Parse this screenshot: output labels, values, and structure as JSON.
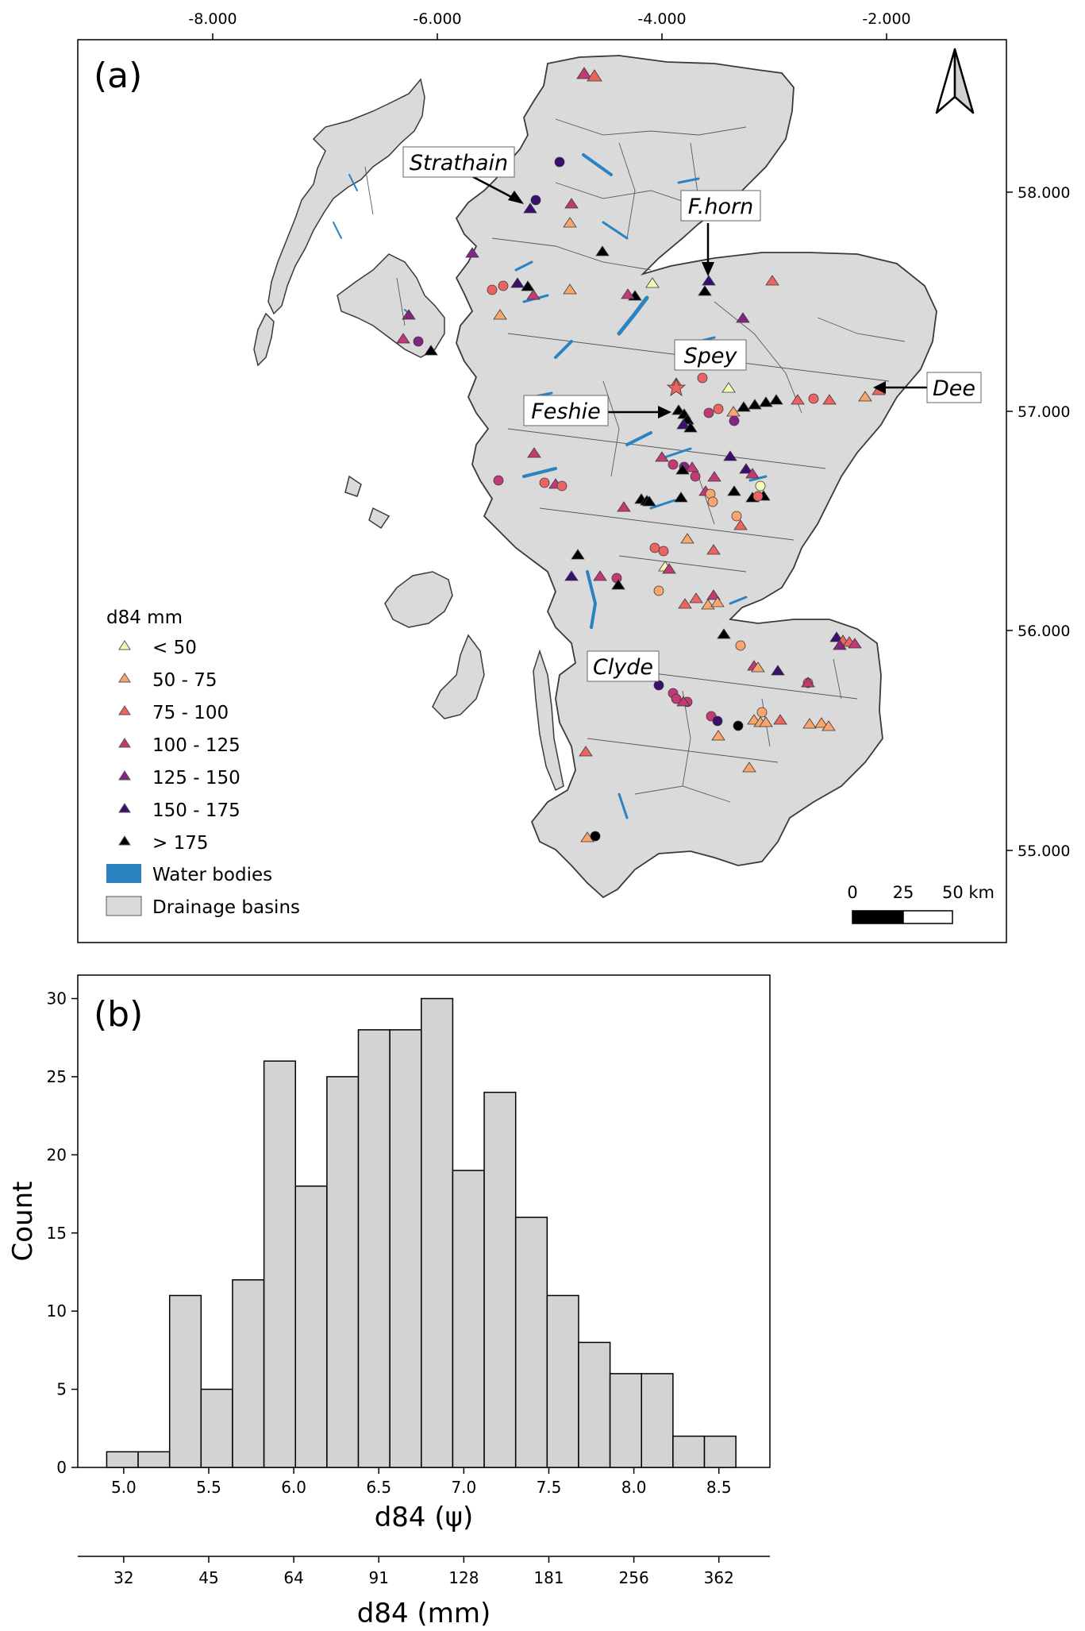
{
  "panel_a": {
    "label": "(a)",
    "lon_ticks": [
      "-8.000",
      "-6.000",
      "-4.000",
      "-2.000"
    ],
    "lat_ticks": [
      "58.000",
      "57.000",
      "56.000",
      "55.000"
    ],
    "callouts": [
      "Strathain",
      "F.horn",
      "Spey",
      "Feshie",
      "Dee",
      "Clyde"
    ],
    "legend": {
      "title": "d84 mm",
      "items": [
        {
          "label": "< 50",
          "color": "#f5fbb4"
        },
        {
          "label": "50 - 75",
          "color": "#f8a56e"
        },
        {
          "label": "75 - 100",
          "color": "#ec6461"
        },
        {
          "label": "100 - 125",
          "color": "#c13a74"
        },
        {
          "label": "125 - 150",
          "color": "#832681"
        },
        {
          "label": "150 - 175",
          "color": "#3b0f6f"
        },
        {
          "label": "> 175",
          "color": "#000004"
        }
      ],
      "water_label": "Water bodies",
      "water_color": "#2b84c1",
      "basin_label": "Drainage basins",
      "basin_color": "#dadada"
    },
    "scalebar": {
      "labels": [
        "0",
        "25",
        "50 km"
      ]
    },
    "north_arrow": "north-arrow"
  },
  "panel_b": {
    "label": "(b)",
    "chart_data": {
      "type": "bar",
      "title": "",
      "xlabel": "d84 (ψ)",
      "xlabel_secondary": "d84 (mm)",
      "ylabel": "Count",
      "bin_width": 0.185,
      "bin_start": 4.9,
      "values": [
        1,
        1,
        11,
        5,
        12,
        26,
        18,
        25,
        28,
        28,
        30,
        19,
        24,
        16,
        11,
        8,
        6,
        6,
        2,
        2
      ],
      "xlim": [
        4.73,
        8.8
      ],
      "ylim": [
        0,
        31.5
      ],
      "x_ticks": [
        5.0,
        5.5,
        6.0,
        6.5,
        7.0,
        7.5,
        8.0,
        8.5
      ],
      "x_tick_labels": [
        "5.0",
        "5.5",
        "6.0",
        "6.5",
        "7.0",
        "7.5",
        "8.0",
        "8.5"
      ],
      "y_ticks": [
        0,
        5,
        10,
        15,
        20,
        25,
        30
      ],
      "y_tick_labels": [
        "0",
        "5",
        "10",
        "15",
        "20",
        "25",
        "30"
      ],
      "mm_tick_labels": [
        "32",
        "45",
        "64",
        "91",
        "128",
        "181",
        "256",
        "362"
      ],
      "bar_color": "#d3d3d3",
      "edge_color": "#000000"
    }
  }
}
